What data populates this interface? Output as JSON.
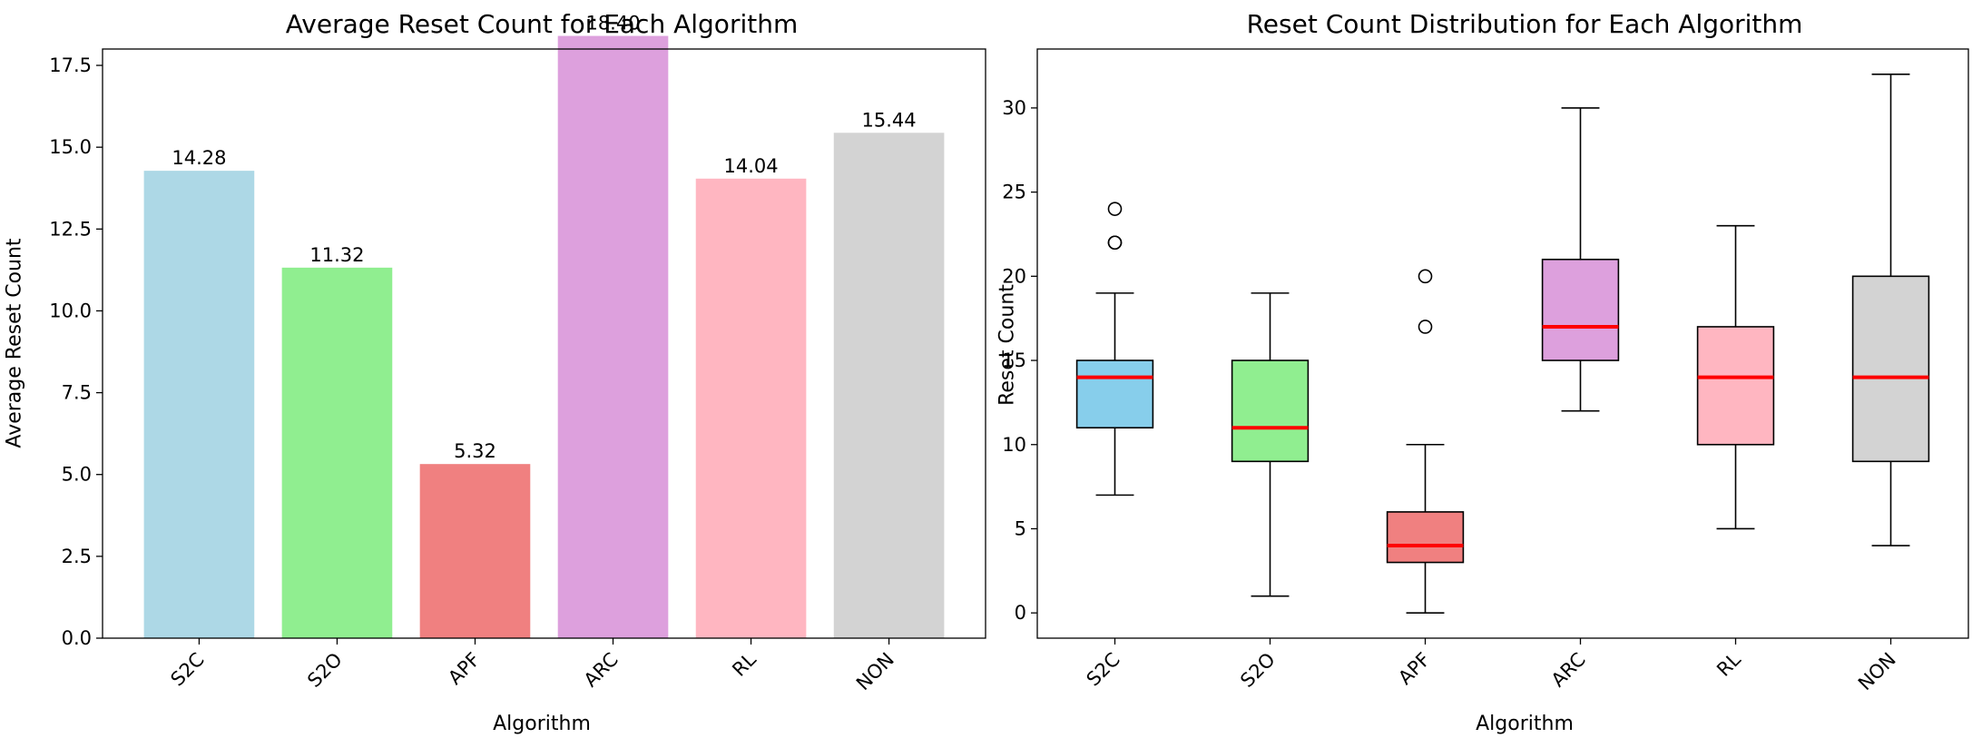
{
  "charts": [
    {
      "type": "bar",
      "title": "Average Reset Count for Each Algorithm",
      "xlabel": "Algorithm",
      "ylabel": "Average Reset Count",
      "categories": [
        "S2C",
        "S2O",
        "APF",
        "ARC",
        "RL",
        "NON"
      ],
      "values": [
        14.28,
        11.32,
        5.32,
        18.4,
        14.04,
        15.44
      ],
      "value_labels": [
        "14.28",
        "11.32",
        "5.32",
        "18.40",
        "14.04",
        "15.44"
      ],
      "colors": [
        "#add8e6",
        "#90ee90",
        "#f08080",
        "#dda0dd",
        "#ffb6c1",
        "#d3d3d3"
      ],
      "ylim": [
        0,
        18.0
      ],
      "yticks": [
        0.0,
        2.5,
        5.0,
        7.5,
        10.0,
        12.5,
        15.0,
        17.5
      ],
      "ytick_labels": [
        "0.0",
        "2.5",
        "5.0",
        "7.5",
        "10.0",
        "12.5",
        "15.0",
        "17.5"
      ],
      "grid": false
    },
    {
      "type": "box",
      "title": "Reset Count Distribution for Each Algorithm",
      "xlabel": "Algorithm",
      "ylabel": "Reset Count",
      "categories": [
        "S2C",
        "S2O",
        "APF",
        "ARC",
        "RL",
        "NON"
      ],
      "boxes": [
        {
          "whisker_low": 7,
          "q1": 11,
          "median": 14,
          "q3": 15,
          "whisker_high": 19,
          "outliers": [
            22,
            22,
            24
          ]
        },
        {
          "whisker_low": 1,
          "q1": 9,
          "median": 11,
          "q3": 15,
          "whisker_high": 19,
          "outliers": []
        },
        {
          "whisker_low": 0,
          "q1": 3,
          "median": 4,
          "q3": 6,
          "whisker_high": 10,
          "outliers": [
            17,
            20
          ]
        },
        {
          "whisker_low": 12,
          "q1": 15,
          "median": 17,
          "q3": 21,
          "whisker_high": 30,
          "outliers": []
        },
        {
          "whisker_low": 5,
          "q1": 10,
          "median": 14,
          "q3": 17,
          "whisker_high": 23,
          "outliers": []
        },
        {
          "whisker_low": 4,
          "q1": 9,
          "median": 14,
          "q3": 20,
          "whisker_high": 32,
          "outliers": []
        }
      ],
      "colors": [
        "#87ceeb",
        "#90ee90",
        "#f08080",
        "#dda0dd",
        "#ffb6c1",
        "#d3d3d3"
      ],
      "median_color": "#ff0000",
      "ylim": [
        -1.5,
        33.5
      ],
      "yticks": [
        0,
        5,
        10,
        15,
        20,
        25,
        30
      ],
      "ytick_labels": [
        "0",
        "5",
        "10",
        "15",
        "20",
        "25",
        "30"
      ],
      "grid": false
    }
  ]
}
